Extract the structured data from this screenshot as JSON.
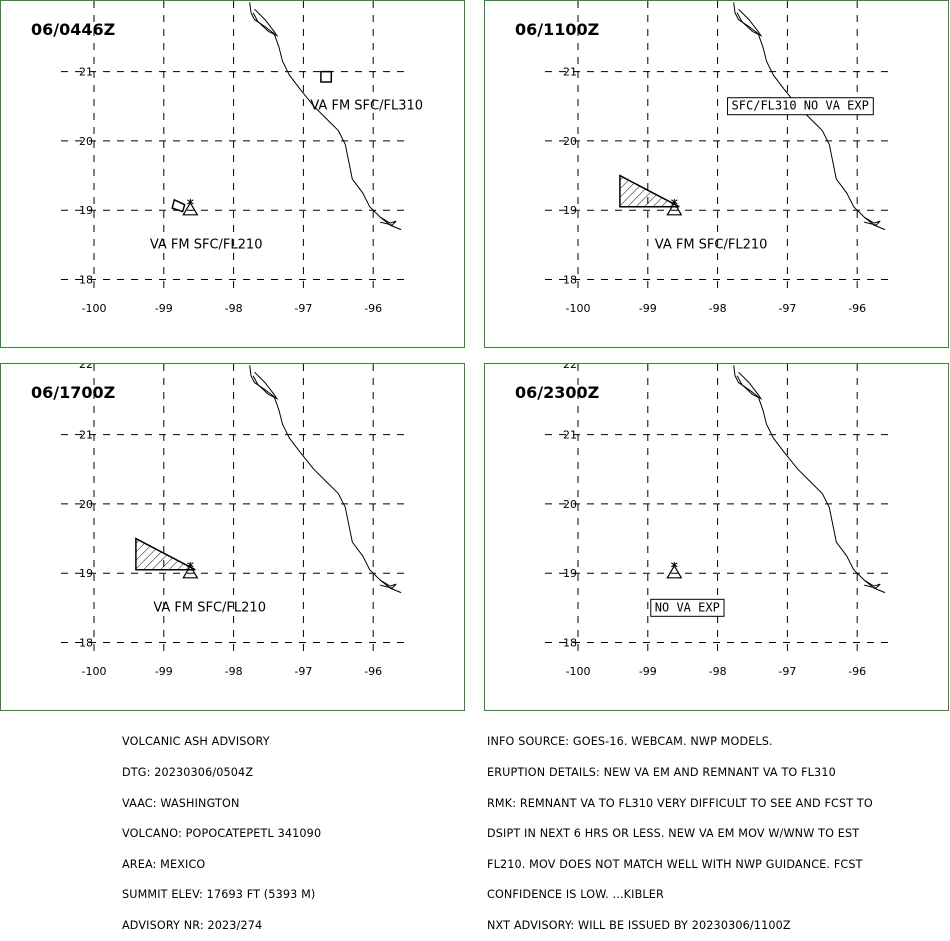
{
  "panels": [
    {
      "id": "p0",
      "time": "06/0446Z",
      "show_top_tick": false,
      "labels": [
        {
          "text": "VA FM SFC/FL310",
          "lon": -96.9,
          "lat": 20.45,
          "boxed": false
        },
        {
          "text": "VA FM SFC/FL210",
          "lon": -99.2,
          "lat": 18.45,
          "boxed": false
        }
      ],
      "polygons": [
        {
          "points": [
            [
              -96.75,
              20.85
            ],
            [
              -96.6,
              20.85
            ],
            [
              -96.6,
              21.0
            ],
            [
              -96.75,
              21.0
            ]
          ],
          "hatched": false
        },
        {
          "points": [
            [
              -98.85,
              19.15
            ],
            [
              -98.7,
              19.08
            ],
            [
              -98.73,
              18.98
            ],
            [
              -98.88,
              19.03
            ]
          ],
          "hatched": false
        }
      ]
    },
    {
      "id": "p1",
      "time": "06/1100Z",
      "show_top_tick": false,
      "labels": [
        {
          "text": "SFC/FL310 NO VA EXP",
          "lon": -97.8,
          "lat": 20.45,
          "boxed": true
        },
        {
          "text": "VA FM SFC/FL210",
          "lon": -98.9,
          "lat": 18.45,
          "boxed": false
        }
      ],
      "polygons": [
        {
          "points": [
            [
              -99.4,
              19.5
            ],
            [
              -98.55,
              19.05
            ],
            [
              -99.4,
              19.05
            ]
          ],
          "hatched": true
        }
      ]
    },
    {
      "id": "p2",
      "time": "06/1700Z",
      "show_top_tick": true,
      "labels": [
        {
          "text": "VA FM SFC/FL210",
          "lon": -99.15,
          "lat": 18.45,
          "boxed": false
        }
      ],
      "polygons": [
        {
          "points": [
            [
              -99.4,
              19.5
            ],
            [
              -98.55,
              19.05
            ],
            [
              -99.4,
              19.05
            ]
          ],
          "hatched": true
        }
      ]
    },
    {
      "id": "p3",
      "time": "06/2300Z",
      "show_top_tick": true,
      "labels": [
        {
          "text": "NO VA EXP",
          "lon": -98.9,
          "lat": 18.45,
          "boxed": true
        }
      ],
      "polygons": []
    }
  ],
  "axes": {
    "lon_ticks": [
      -100,
      -99,
      -98,
      -97,
      -96
    ],
    "lon_tick_labels": [
      "-100",
      "-99",
      "-98",
      "-97",
      "-96"
    ],
    "lat_ticks": [
      18,
      19,
      20,
      21
    ],
    "lat_tick_labels": [
      "18",
      "19",
      "20",
      "21"
    ],
    "top_tick_label": "22",
    "lon_range": [
      -100.2,
      -95.2
    ],
    "lat_range": [
      17.6,
      22.0
    ]
  },
  "volcano": {
    "lon": -98.62,
    "lat": 19.02
  },
  "coastline": [
    [
      -97.77,
      22.0
    ],
    [
      -97.75,
      21.85
    ],
    [
      -97.7,
      21.75
    ],
    [
      -97.55,
      21.65
    ],
    [
      -97.42,
      21.55
    ],
    [
      -97.35,
      21.35
    ],
    [
      -97.3,
      21.15
    ],
    [
      -97.2,
      20.95
    ],
    [
      -97.05,
      20.75
    ],
    [
      -96.85,
      20.5
    ],
    [
      -96.65,
      20.3
    ],
    [
      -96.5,
      20.15
    ],
    [
      -96.4,
      19.95
    ],
    [
      -96.35,
      19.7
    ],
    [
      -96.3,
      19.45
    ],
    [
      -96.15,
      19.25
    ],
    [
      -96.05,
      19.05
    ],
    [
      -95.9,
      18.9
    ],
    [
      -95.75,
      18.78
    ],
    [
      -95.6,
      18.72
    ]
  ],
  "lagoon": [
    [
      -97.7,
      21.9
    ],
    [
      -97.55,
      21.75
    ],
    [
      -97.42,
      21.58
    ],
    [
      -97.38,
      21.52
    ],
    [
      -97.5,
      21.58
    ],
    [
      -97.65,
      21.72
    ],
    [
      -97.72,
      21.85
    ]
  ],
  "text_left": [
    "VOLCANIC ASH ADVISORY",
    "DTG: 20230306/0504Z",
    "VAAC: WASHINGTON",
    "VOLCANO: POPOCATEPETL 341090",
    "AREA: MEXICO",
    "SUMMIT ELEV: 17693 FT (5393 M)",
    "ADVISORY NR: 2023/274"
  ],
  "text_right": [
    "INFO SOURCE: GOES-16. WEBCAM. NWP MODELS.",
    "ERUPTION DETAILS: NEW VA EM AND REMNANT VA TO FL310",
    "RMK: REMNANT VA TO FL310 VERY DIFFICULT TO SEE AND FCST TO",
    "DSIPT IN NEXT 6 HRS OR LESS. NEW VA EM MOV W/WNW TO EST",
    "FL210. MOV DOES NOT MATCH WELL WITH NWP GUIDANCE. FCST",
    "CONFIDENCE IS LOW. ...KIBLER",
    "NXT ADVISORY: WILL BE ISSUED BY 20230306/1100Z"
  ],
  "colors": {
    "frame": "#2e8b2e",
    "ink": "#000000"
  }
}
